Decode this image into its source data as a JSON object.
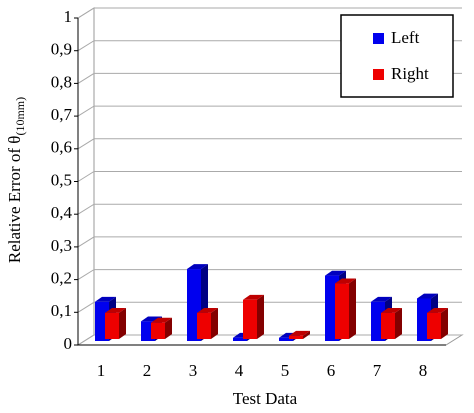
{
  "chart_data": {
    "type": "bar3d",
    "x_label": "Test Data",
    "y_label": "Relative Error of θ",
    "y_label_subscript": "(10mm)",
    "categories": [
      "1",
      "2",
      "3",
      "4",
      "5",
      "6",
      "7",
      "8"
    ],
    "series": [
      {
        "name": "Left",
        "color": "#0000ee",
        "values": [
          0.12,
          0.06,
          0.22,
          0.01,
          0.01,
          0.2,
          0.12,
          0.13
        ]
      },
      {
        "name": "Right",
        "color": "#ee0000",
        "values": [
          0.08,
          0.05,
          0.08,
          0.12,
          0.01,
          0.17,
          0.08,
          0.08
        ]
      }
    ],
    "ylim": [
      0,
      1
    ],
    "yticks": [
      0,
      {
        "value": 0.1,
        "label": "0,1"
      },
      {
        "value": 0.2,
        "label": "0,2"
      },
      {
        "value": 0.3,
        "label": "0,3"
      },
      {
        "value": 0.4,
        "label": "0,4"
      },
      {
        "value": 0.5,
        "label": "0,5"
      },
      {
        "value": 0.6,
        "label": "0,6"
      },
      {
        "value": 0.7,
        "label": "0,7"
      },
      {
        "value": 0.8,
        "label": "0,8"
      },
      {
        "value": 0.9,
        "label": "0,9"
      },
      1
    ],
    "grid": true,
    "legend": "upper right"
  }
}
